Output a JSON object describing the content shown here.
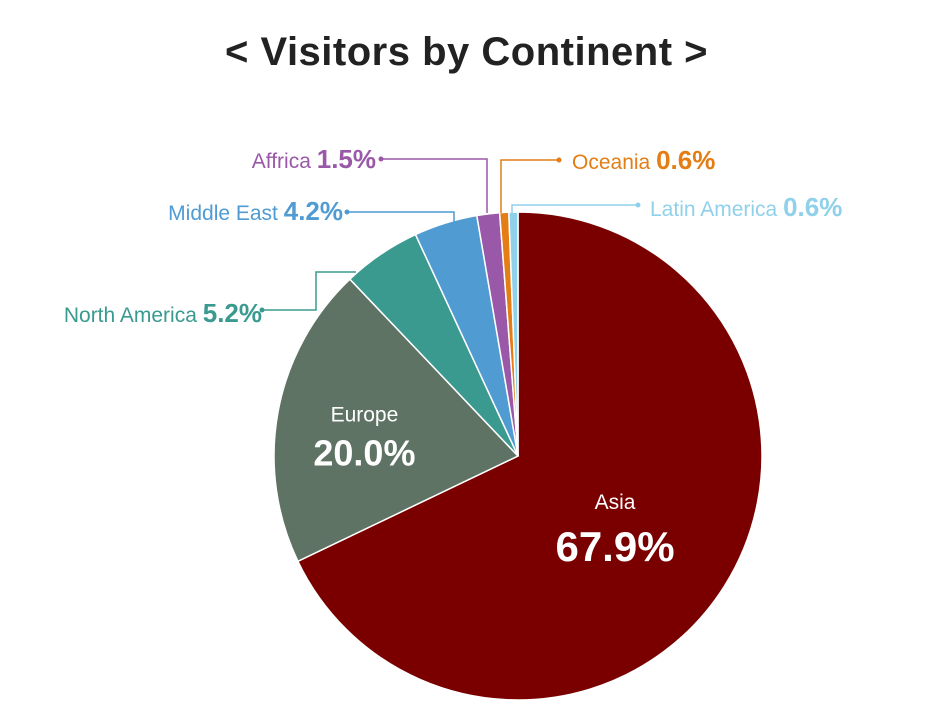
{
  "chart_data": {
    "type": "pie",
    "title": "< Visitors by Continent >",
    "unit": "%",
    "slices": [
      {
        "label": "Asia",
        "value": 67.9,
        "display": "67.9%",
        "color": "#7a0000"
      },
      {
        "label": "Europe",
        "value": 20.0,
        "display": "20.0%",
        "color": "#5f7365"
      },
      {
        "label": "North America",
        "value": 5.2,
        "display": "5.2%",
        "color": "#3a9a8f"
      },
      {
        "label": "Middle East",
        "value": 4.2,
        "display": "4.2%",
        "color": "#4f9bd2"
      },
      {
        "label": "Affrica",
        "value": 1.5,
        "display": "1.5%",
        "color": "#9a58a8"
      },
      {
        "label": "Oceania",
        "value": 0.6,
        "display": "0.6%",
        "color": "#e37d14"
      },
      {
        "label": "Latin America",
        "value": 0.6,
        "display": "0.6%",
        "color": "#8fd0ea"
      }
    ],
    "start_angle_deg": 0,
    "direction": "clockwise",
    "legend": "none"
  }
}
